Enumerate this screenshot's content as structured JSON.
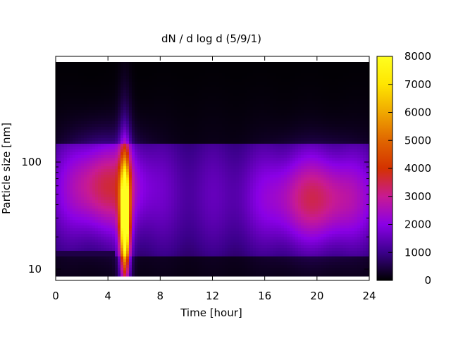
{
  "chart_data": {
    "type": "heatmap",
    "title": "dN / d log d (5/9/1)",
    "xlabel": "Time [hour]",
    "ylabel": "Particle size [nm]",
    "xlim": [
      0,
      24
    ],
    "ylim_nm": [
      8,
      190
    ],
    "y_scale": "log",
    "x_ticks": [
      0,
      4,
      8,
      12,
      16,
      20,
      24
    ],
    "x_tick_labels": [
      "0",
      "4",
      "8",
      "12",
      "16",
      "20",
      "24"
    ],
    "y_ticks": [
      10,
      100
    ],
    "y_tick_labels": [
      "10",
      "100"
    ],
    "colorbar": {
      "min": 0,
      "max": 8000,
      "ticks": [
        0,
        1000,
        2000,
        3000,
        4000,
        5000,
        6000,
        7000,
        8000
      ],
      "tick_labels": [
        "0",
        "1000",
        "2000",
        "3000",
        "4000",
        "5000",
        "6000",
        "7000",
        "8000"
      ],
      "palette": [
        "#000000",
        "#3b008b",
        "#8a00e6",
        "#c81a92",
        "#d43200",
        "#e06600",
        "#f0a800",
        "#ffe500",
        "#ffff20"
      ]
    },
    "features": [
      {
        "kind": "background",
        "size_range_nm": [
          8,
          190
        ],
        "time_range_h": [
          0,
          24
        ],
        "value": 1500
      },
      {
        "kind": "burst",
        "time_h": 5.3,
        "size_range_nm": [
          8,
          200
        ],
        "peak_size_nm": 30,
        "peak_value": 7600
      },
      {
        "kind": "mode",
        "time_range_h": [
          1.5,
          6
        ],
        "center_size_nm": 60,
        "value": 3100
      },
      {
        "kind": "mode",
        "time_range_h": [
          17,
          23
        ],
        "center_size_nm": 45,
        "value": 2900
      },
      {
        "kind": "low_region",
        "size_range_nm": [
          8,
          15
        ],
        "time_range_h": [
          0,
          4.5
        ],
        "value": 200
      }
    ]
  }
}
